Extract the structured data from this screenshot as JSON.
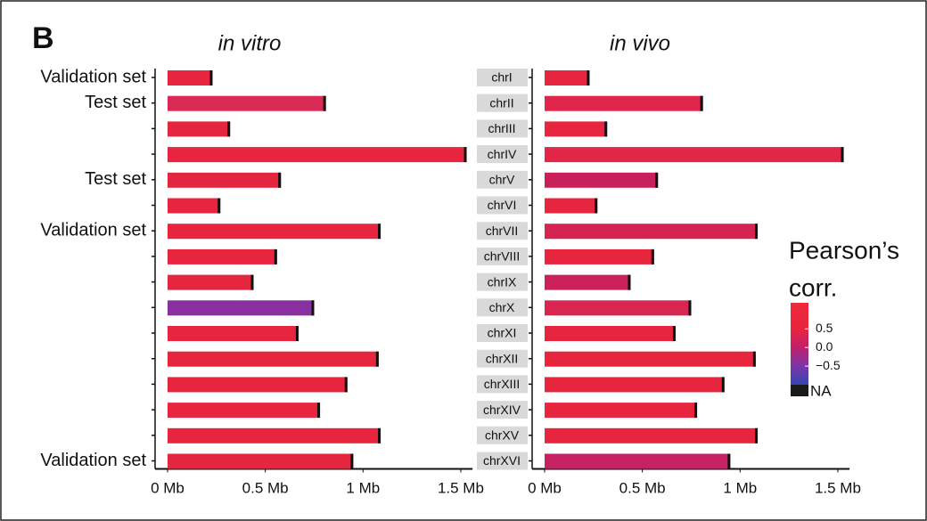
{
  "panel_label": "B",
  "chart_data": [
    {
      "type": "chromosome-bars",
      "title": "in vitro",
      "categories": [
        "Validation set",
        "Test set",
        null,
        null,
        "Test set",
        null,
        "Validation set",
        null,
        null,
        null,
        null,
        null,
        null,
        null,
        null,
        "Validation set"
      ],
      "values": [
        0.23,
        0.81,
        0.32,
        1.53,
        0.58,
        0.27,
        1.09,
        0.56,
        0.44,
        0.75,
        0.67,
        1.08,
        0.92,
        0.78,
        1.09,
        0.95
      ],
      "colors": [
        "#e8253f",
        "#d82a55",
        "#e5263f",
        "#e8253f",
        "#e3263f",
        "#e8253f",
        "#e8253f",
        "#e8253f",
        "#e5263f",
        "#8a2fa0",
        "#e8253f",
        "#e8253f",
        "#e8253f",
        "#e8253f",
        "#e8253f",
        "#e5263f"
      ],
      "xlim": [
        0,
        1.56
      ],
      "xticks": [
        {
          "value": 0,
          "label": "0 Mb"
        },
        {
          "value": 0.5,
          "label": "0.5 Mb"
        },
        {
          "value": 1,
          "label": "1 Mb"
        },
        {
          "value": 1.5,
          "label": "1.5 Mb"
        }
      ]
    },
    {
      "type": "chromosome-bars",
      "title": "in vivo",
      "categories": [
        "chrI",
        "chrII",
        "chrIII",
        "chrIV",
        "chrV",
        "chrVI",
        "chrVII",
        "chrVIII",
        "chrIX",
        "chrX",
        "chrXI",
        "chrXII",
        "chrXIII",
        "chrXIV",
        "chrXV",
        "chrXVI"
      ],
      "values": [
        0.23,
        0.81,
        0.32,
        1.53,
        0.58,
        0.27,
        1.09,
        0.56,
        0.44,
        0.75,
        0.67,
        1.08,
        0.92,
        0.78,
        1.09,
        0.95
      ],
      "colors": [
        "#e8253f",
        "#e0264a",
        "#e8253f",
        "#e2264a",
        "#c8205a",
        "#e8253f",
        "#d52452",
        "#e8253f",
        "#cc2158",
        "#d82552",
        "#e8253f",
        "#e8253f",
        "#e8253f",
        "#e8253f",
        "#e8253f",
        "#c62262"
      ],
      "xlim": [
        0,
        1.56
      ],
      "xticks": [
        {
          "value": 0,
          "label": "0 Mb"
        },
        {
          "value": 0.5,
          "label": "0.5 Mb"
        },
        {
          "value": 1,
          "label": "1 Mb"
        },
        {
          "value": 1.5,
          "label": "1.5 Mb"
        }
      ]
    }
  ],
  "colorbar": {
    "title": [
      "Pearson’s",
      "corr."
    ],
    "lim": [
      -1.0,
      1.2
    ],
    "ticks": [
      0.5,
      {
        "value": 0,
        "label": "0.0"
      },
      {
        "value": -0.5,
        "label": "−0.5"
      }
    ],
    "na_label": "NA",
    "na_color": "#1a1a1a",
    "stops": [
      {
        "value": -1.0,
        "color": "#3446b0"
      },
      {
        "value": -0.5,
        "color": "#7a34a8"
      },
      {
        "value": 0,
        "color": "#c0206a"
      },
      {
        "value": 0.5,
        "color": "#e8253f"
      },
      {
        "value": 1.2,
        "color": "#f0283a"
      }
    ]
  }
}
